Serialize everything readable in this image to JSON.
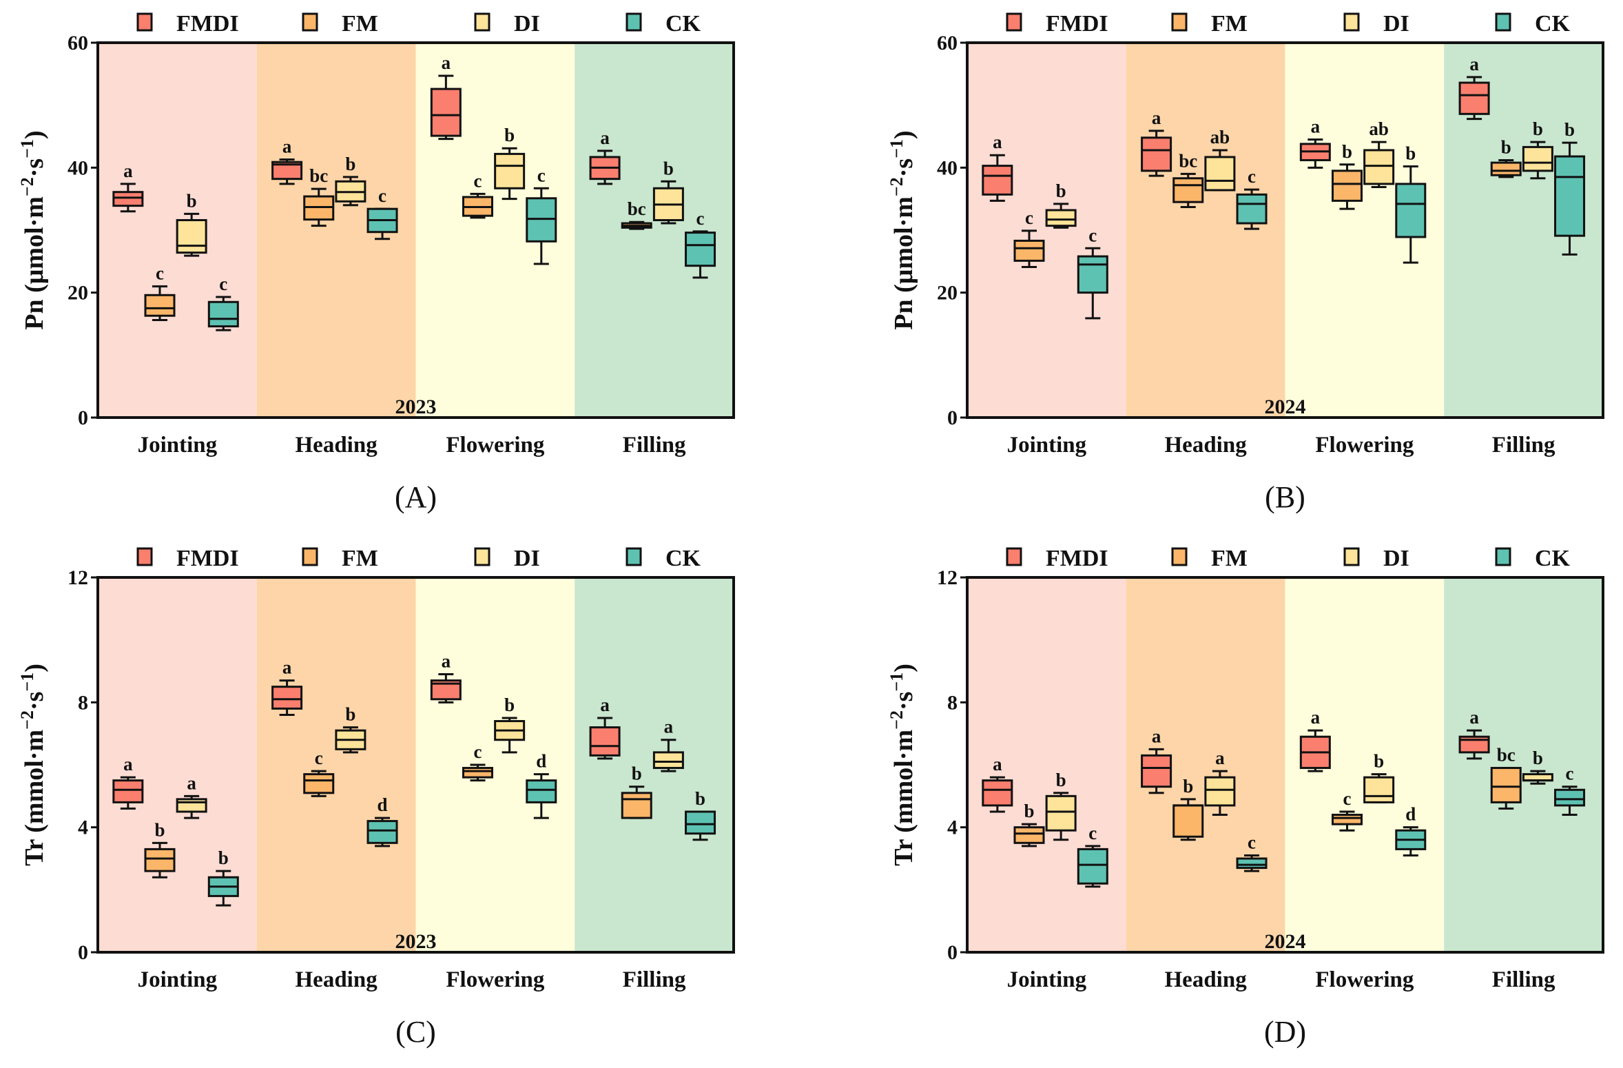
{
  "legend": {
    "items": [
      {
        "label": "FMDI",
        "color": "#fa7f6f"
      },
      {
        "label": "FM",
        "color": "#fbb66a"
      },
      {
        "label": "DI",
        "color": "#fde49a"
      },
      {
        "label": "CK",
        "color": "#5ec2b2"
      }
    ]
  },
  "stage_colors": [
    "#fddcd3",
    "#fdd5a8",
    "#fefedc",
    "#c9e6cf"
  ],
  "chart_data": [
    {
      "type": "box",
      "caption": "(A)",
      "year": "2023",
      "ylabel_parts": [
        "Pn  (μmol·m",
        "−2",
        "·s",
        "−1",
        ")"
      ],
      "ylim": [
        0,
        60
      ],
      "yticks": [
        "0",
        "20",
        "40",
        "60"
      ],
      "categories": [
        "Jointing",
        "Heading",
        "Flowering",
        "Filling"
      ],
      "series_order": [
        "FMDI",
        "FM",
        "DI",
        "CK"
      ],
      "boxes": [
        [
          [
            33.0,
            33.9,
            35.2,
            36.1,
            37.4
          ],
          [
            15.6,
            16.3,
            17.5,
            19.6,
            21.0
          ],
          [
            25.9,
            26.4,
            27.5,
            31.6,
            32.6
          ],
          [
            14.0,
            14.6,
            15.8,
            18.5,
            19.3
          ]
        ],
        [
          [
            37.4,
            38.2,
            40.5,
            40.9,
            41.3
          ],
          [
            30.7,
            31.7,
            33.7,
            35.4,
            36.6
          ],
          [
            34.0,
            34.6,
            36.1,
            37.8,
            38.5
          ],
          [
            28.6,
            29.7,
            31.6,
            33.4,
            33.4
          ]
        ],
        [
          [
            44.6,
            45.1,
            48.4,
            52.6,
            54.7
          ],
          [
            32.0,
            32.3,
            33.7,
            35.3,
            35.8
          ],
          [
            35.0,
            36.7,
            40.3,
            42.2,
            43.1
          ],
          [
            24.6,
            28.2,
            31.8,
            35.1,
            36.7
          ]
        ],
        [
          [
            37.4,
            38.2,
            40.0,
            41.7,
            42.7
          ],
          [
            30.2,
            30.4,
            30.7,
            31.1,
            31.3
          ],
          [
            31.1,
            31.6,
            34.1,
            36.7,
            37.8
          ],
          [
            22.4,
            24.3,
            27.6,
            29.6,
            29.8
          ]
        ]
      ],
      "letters": [
        [
          "a",
          "c",
          "b",
          "c"
        ],
        [
          "a",
          "bc",
          "b",
          "c"
        ],
        [
          "a",
          "c",
          "b",
          "c"
        ],
        [
          "a",
          "bc",
          "b",
          "c"
        ]
      ]
    },
    {
      "type": "box",
      "caption": "(B)",
      "year": "2024",
      "ylabel_parts": [
        "Pn  (μmol·m",
        "−2",
        "·s",
        "−1",
        ")"
      ],
      "ylim": [
        0,
        60
      ],
      "yticks": [
        "0",
        "20",
        "40",
        "60"
      ],
      "categories": [
        "Jointing",
        "Heading",
        "Flowering",
        "Filling"
      ],
      "series_order": [
        "FMDI",
        "FM",
        "DI",
        "CK"
      ],
      "boxes": [
        [
          [
            34.7,
            35.7,
            38.7,
            40.3,
            42.0
          ],
          [
            24.1,
            25.1,
            27.1,
            28.3,
            29.9
          ],
          [
            30.4,
            30.7,
            31.7,
            33.2,
            34.2
          ],
          [
            15.9,
            20.0,
            24.5,
            25.8,
            27.1
          ]
        ],
        [
          [
            38.7,
            39.5,
            42.8,
            44.8,
            45.9
          ],
          [
            33.7,
            34.5,
            37.2,
            38.3,
            39.0
          ],
          [
            36.4,
            36.4,
            37.9,
            41.7,
            42.8
          ],
          [
            30.2,
            31.1,
            34.2,
            35.7,
            36.5
          ]
        ],
        [
          [
            40.0,
            41.2,
            42.6,
            43.8,
            44.5
          ],
          [
            33.4,
            34.7,
            37.4,
            39.5,
            40.5
          ],
          [
            36.9,
            37.4,
            40.3,
            42.8,
            44.1
          ],
          [
            24.8,
            28.9,
            34.2,
            37.4,
            40.2
          ]
        ],
        [
          [
            47.8,
            48.6,
            51.6,
            53.6,
            54.5
          ],
          [
            38.5,
            38.8,
            39.5,
            40.8,
            41.2
          ],
          [
            38.3,
            39.5,
            40.8,
            43.3,
            44.1
          ],
          [
            26.1,
            29.1,
            38.5,
            41.8,
            44.0
          ]
        ]
      ],
      "letters": [
        [
          "a",
          "c",
          "b",
          "c"
        ],
        [
          "a",
          "bc",
          "ab",
          "c"
        ],
        [
          "a",
          "b",
          "ab",
          "b"
        ],
        [
          "a",
          "b",
          "b",
          "b"
        ]
      ]
    },
    {
      "type": "box",
      "caption": "(C)",
      "year": "2023",
      "ylabel_parts": [
        "Tr  (mmol·m",
        "−2",
        "·s",
        "−1",
        ")"
      ],
      "ylim": [
        0,
        12
      ],
      "yticks": [
        "0",
        "4",
        "8",
        "12"
      ],
      "categories": [
        "Jointing",
        "Heading",
        "Flowering",
        "Filling"
      ],
      "series_order": [
        "FMDI",
        "FM",
        "DI",
        "CK"
      ],
      "boxes": [
        [
          [
            4.6,
            4.8,
            5.2,
            5.5,
            5.6
          ],
          [
            2.4,
            2.6,
            3.0,
            3.3,
            3.5
          ],
          [
            4.3,
            4.5,
            4.8,
            4.9,
            5.0
          ],
          [
            1.5,
            1.8,
            2.1,
            2.4,
            2.6
          ]
        ],
        [
          [
            7.6,
            7.8,
            8.1,
            8.5,
            8.7
          ],
          [
            5.0,
            5.1,
            5.5,
            5.7,
            5.8
          ],
          [
            6.4,
            6.5,
            6.8,
            7.1,
            7.2
          ],
          [
            3.4,
            3.5,
            3.9,
            4.2,
            4.3
          ]
        ],
        [
          [
            8.0,
            8.1,
            8.6,
            8.7,
            8.9
          ],
          [
            5.5,
            5.6,
            5.8,
            5.9,
            6.0
          ],
          [
            6.4,
            6.8,
            7.1,
            7.4,
            7.5
          ],
          [
            4.3,
            4.8,
            5.2,
            5.5,
            5.7
          ]
        ],
        [
          [
            6.2,
            6.3,
            6.6,
            7.2,
            7.5
          ],
          [
            4.3,
            4.3,
            4.9,
            5.1,
            5.3
          ],
          [
            5.8,
            5.9,
            6.1,
            6.4,
            6.8
          ],
          [
            3.6,
            3.8,
            4.1,
            4.5,
            4.5
          ]
        ]
      ],
      "letters": [
        [
          "a",
          "b",
          "a",
          "b"
        ],
        [
          "a",
          "c",
          "b",
          "d"
        ],
        [
          "a",
          "c",
          "b",
          "d"
        ],
        [
          "a",
          "b",
          "a",
          "b"
        ]
      ]
    },
    {
      "type": "box",
      "caption": "(D)",
      "year": "2024",
      "ylabel_parts": [
        "Tr  (mmol·m",
        "−2",
        "·s",
        "−1",
        ")"
      ],
      "ylim": [
        0,
        12
      ],
      "yticks": [
        "0",
        "4",
        "8",
        "12"
      ],
      "categories": [
        "Jointing",
        "Heading",
        "Flowering",
        "Filling"
      ],
      "series_order": [
        "FMDI",
        "FM",
        "DI",
        "CK"
      ],
      "boxes": [
        [
          [
            4.5,
            4.7,
            5.2,
            5.5,
            5.6
          ],
          [
            3.4,
            3.5,
            3.8,
            4.0,
            4.1
          ],
          [
            3.6,
            3.9,
            4.5,
            5.0,
            5.1
          ],
          [
            2.1,
            2.2,
            2.8,
            3.3,
            3.4
          ]
        ],
        [
          [
            5.1,
            5.3,
            5.9,
            6.3,
            6.5
          ],
          [
            3.6,
            3.7,
            4.7,
            4.7,
            4.9
          ],
          [
            4.4,
            4.7,
            5.2,
            5.6,
            5.8
          ],
          [
            2.6,
            2.7,
            2.8,
            3.0,
            3.1
          ]
        ],
        [
          [
            5.8,
            5.9,
            6.4,
            6.9,
            7.1
          ],
          [
            3.9,
            4.1,
            4.3,
            4.4,
            4.5
          ],
          [
            4.8,
            4.8,
            5.0,
            5.6,
            5.7
          ],
          [
            3.1,
            3.3,
            3.6,
            3.9,
            4.0
          ]
        ],
        [
          [
            6.2,
            6.4,
            6.8,
            6.9,
            7.1
          ],
          [
            4.6,
            4.8,
            5.3,
            5.9,
            5.9
          ],
          [
            5.4,
            5.5,
            5.5,
            5.7,
            5.8
          ],
          [
            4.4,
            4.7,
            4.9,
            5.2,
            5.3
          ]
        ]
      ],
      "letters": [
        [
          "a",
          "b",
          "b",
          "c"
        ],
        [
          "a",
          "b",
          "a",
          "c"
        ],
        [
          "a",
          "c",
          "b",
          "d"
        ],
        [
          "a",
          "bc",
          "b",
          "c"
        ]
      ]
    }
  ]
}
